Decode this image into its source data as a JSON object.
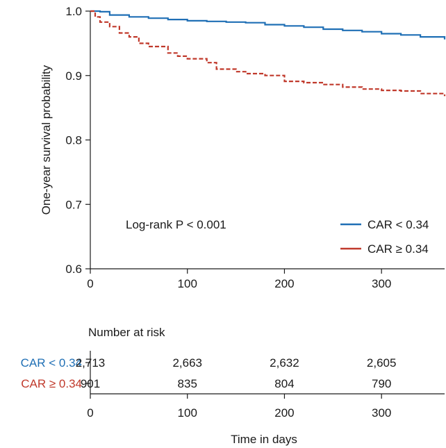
{
  "chart_data": {
    "type": "line",
    "ylabel": "One-year survival probability",
    "xlabel": "Time in days",
    "xlim": [
      0,
      365
    ],
    "ylim": [
      0.6,
      1.0
    ],
    "x_ticks": [
      0,
      100,
      200,
      300
    ],
    "y_ticks": [
      0.6,
      0.7,
      0.8,
      0.9,
      1.0
    ],
    "x_tick_labels": [
      "0",
      "100",
      "200",
      "300"
    ],
    "y_tick_labels": [
      "0.6",
      "0.7",
      "0.8",
      "0.9",
      "1.0"
    ],
    "annotation": "Log-rank P < 0.001",
    "legend_position": "bottom-right",
    "grid": false,
    "series": [
      {
        "name": "CAR < 0.34",
        "color": "#1f6fb5",
        "style": "solid",
        "points": [
          [
            0,
            1.0
          ],
          [
            10,
            0.999
          ],
          [
            20,
            0.994
          ],
          [
            40,
            0.991
          ],
          [
            60,
            0.989
          ],
          [
            80,
            0.987
          ],
          [
            100,
            0.985
          ],
          [
            120,
            0.984
          ],
          [
            140,
            0.983
          ],
          [
            160,
            0.982
          ],
          [
            180,
            0.979
          ],
          [
            200,
            0.977
          ],
          [
            220,
            0.975
          ],
          [
            240,
            0.972
          ],
          [
            260,
            0.97
          ],
          [
            280,
            0.968
          ],
          [
            300,
            0.965
          ],
          [
            320,
            0.963
          ],
          [
            340,
            0.96
          ],
          [
            365,
            0.956
          ]
        ]
      },
      {
        "name": "CAR ≥ 0.34",
        "color": "#c0392b",
        "style": "dashed",
        "points": [
          [
            0,
            1.0
          ],
          [
            5,
            0.991
          ],
          [
            10,
            0.983
          ],
          [
            20,
            0.976
          ],
          [
            30,
            0.966
          ],
          [
            40,
            0.96
          ],
          [
            50,
            0.95
          ],
          [
            60,
            0.945
          ],
          [
            80,
            0.935
          ],
          [
            90,
            0.93
          ],
          [
            100,
            0.926
          ],
          [
            120,
            0.92
          ],
          [
            130,
            0.91
          ],
          [
            150,
            0.906
          ],
          [
            160,
            0.903
          ],
          [
            180,
            0.9
          ],
          [
            200,
            0.891
          ],
          [
            220,
            0.889
          ],
          [
            240,
            0.886
          ],
          [
            260,
            0.882
          ],
          [
            280,
            0.879
          ],
          [
            300,
            0.877
          ],
          [
            320,
            0.876
          ],
          [
            340,
            0.872
          ],
          [
            365,
            0.868
          ]
        ]
      }
    ],
    "risk_table": {
      "title": "Number at risk",
      "x": [
        0,
        100,
        200,
        300
      ],
      "rows": [
        {
          "label": "CAR < 0.34",
          "color": "#1f6fb5",
          "values": [
            "2,713",
            "2,663",
            "2,632",
            "2,605"
          ]
        },
        {
          "label": "CAR ≥ 0.34",
          "color": "#c0392b",
          "values": [
            "901",
            "835",
            "804",
            "790"
          ]
        }
      ],
      "x_tick_labels": [
        "0",
        "100",
        "200",
        "300"
      ]
    }
  }
}
